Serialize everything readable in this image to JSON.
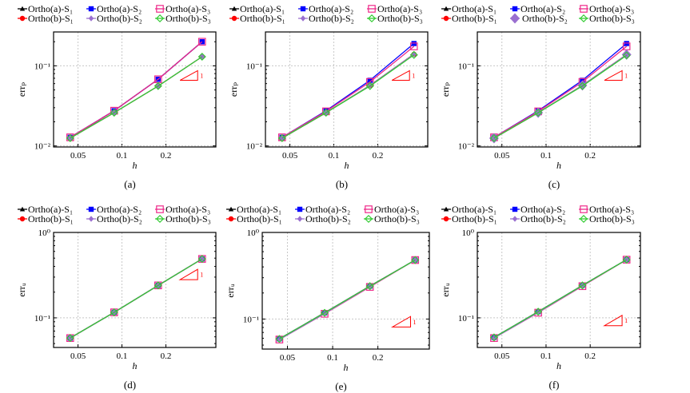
{
  "legend": {
    "entries": [
      {
        "label": "Ortho(a)-S₁",
        "color": "#000000",
        "marker": "triangle"
      },
      {
        "label": "Ortho(a)-S₂",
        "color": "#0000ff",
        "marker": "square"
      },
      {
        "label": "Ortho(a)-S₃",
        "color": "#ee2a8a",
        "marker": "open-square"
      },
      {
        "label": "Ortho(b)-S₁",
        "color": "#ff0000",
        "marker": "circle"
      },
      {
        "label": "Ortho(b)-S₂",
        "color": "#9a6fd0",
        "marker": "diamond"
      },
      {
        "label": "Ortho(b)-S₃",
        "color": "#33cc33",
        "marker": "open-diamond"
      }
    ]
  },
  "chart_data": [
    {
      "type": "line",
      "panel": "(a)",
      "xlabel": "h",
      "ylabel": "errₚ",
      "xscale": "log",
      "yscale": "log",
      "xlim": [
        0.034,
        0.44
      ],
      "ylim": [
        0.0097,
        0.265
      ],
      "xticks": [
        0.05,
        0.1,
        0.2
      ],
      "xtick_labels": [
        "0.05",
        "0.1",
        "0.2"
      ],
      "yticks": [
        0.01,
        0.1
      ],
      "ytick_labels": [
        "10⁻²",
        "10⁻¹"
      ],
      "grid": true,
      "slope_label": "1",
      "slope_triangle": {
        "x": [
          0.25,
          0.33
        ],
        "y": [
          0.066,
          0.087
        ]
      },
      "x": [
        0.0442,
        0.0884,
        0.177,
        0.354
      ],
      "series": [
        {
          "name": "Ortho(a)-S₁",
          "values": [
            0.0128,
            0.0275,
            0.068,
            0.2
          ]
        },
        {
          "name": "Ortho(a)-S₂",
          "values": [
            0.0128,
            0.0275,
            0.068,
            0.2
          ]
        },
        {
          "name": "Ortho(a)-S₃",
          "values": [
            0.0128,
            0.0275,
            0.068,
            0.2
          ]
        },
        {
          "name": "Ortho(b)-S₁",
          "values": [
            0.0125,
            0.026,
            0.056,
            0.13
          ]
        },
        {
          "name": "Ortho(b)-S₂",
          "values": [
            0.0125,
            0.026,
            0.056,
            0.13
          ]
        },
        {
          "name": "Ortho(b)-S₃",
          "values": [
            0.0125,
            0.026,
            0.056,
            0.13
          ]
        }
      ]
    },
    {
      "type": "line",
      "panel": "(b)",
      "xlabel": "h",
      "ylabel": "errₚ",
      "xscale": "log",
      "yscale": "log",
      "xlim": [
        0.034,
        0.44
      ],
      "ylim": [
        0.0097,
        0.265
      ],
      "xticks": [
        0.05,
        0.1,
        0.2
      ],
      "xtick_labels": [
        "0.05",
        "0.1",
        "0.2"
      ],
      "yticks": [
        0.01,
        0.1
      ],
      "ytick_labels": [
        "10⁻²",
        "10⁻¹"
      ],
      "grid": true,
      "slope_label": "1",
      "slope_triangle": {
        "x": [
          0.25,
          0.33
        ],
        "y": [
          0.066,
          0.087
        ]
      },
      "x": [
        0.0442,
        0.0884,
        0.177,
        0.354
      ],
      "series": [
        {
          "name": "Ortho(a)-S₁",
          "values": [
            0.0125,
            0.026,
            0.057,
            0.14
          ]
        },
        {
          "name": "Ortho(a)-S₂",
          "values": [
            0.0128,
            0.0275,
            0.066,
            0.19
          ]
        },
        {
          "name": "Ortho(a)-S₃",
          "values": [
            0.0128,
            0.027,
            0.063,
            0.175
          ]
        },
        {
          "name": "Ortho(b)-S₁",
          "values": [
            0.0125,
            0.026,
            0.057,
            0.14
          ]
        },
        {
          "name": "Ortho(b)-S₂",
          "values": [
            0.0125,
            0.026,
            0.057,
            0.14
          ]
        },
        {
          "name": "Ortho(b)-S₃",
          "values": [
            0.0125,
            0.026,
            0.056,
            0.137
          ]
        }
      ]
    },
    {
      "type": "line",
      "panel": "(c)",
      "xlabel": "h",
      "ylabel": "errₚ",
      "xscale": "log",
      "yscale": "log",
      "xlim": [
        0.034,
        0.44
      ],
      "ylim": [
        0.0097,
        0.265
      ],
      "xticks": [
        0.05,
        0.1,
        0.2
      ],
      "xtick_labels": [
        "0.05",
        "0.1",
        "0.2"
      ],
      "yticks": [
        0.01,
        0.1
      ],
      "ytick_labels": [
        "10⁻²",
        "10⁻¹"
      ],
      "grid": true,
      "slope_label": "1",
      "slope_triangle": {
        "x": [
          0.25,
          0.33
        ],
        "y": [
          0.066,
          0.087
        ]
      },
      "x": [
        0.0442,
        0.0884,
        0.177,
        0.354
      ],
      "series": [
        {
          "name": "Ortho(a)-S₁",
          "values": [
            0.0125,
            0.026,
            0.057,
            0.138
          ]
        },
        {
          "name": "Ortho(a)-S₂",
          "values": [
            0.0128,
            0.0275,
            0.066,
            0.19
          ]
        },
        {
          "name": "Ortho(a)-S₃",
          "values": [
            0.0128,
            0.027,
            0.063,
            0.175
          ]
        },
        {
          "name": "Ortho(b)-S₁",
          "values": [
            0.0125,
            0.026,
            0.057,
            0.138
          ]
        },
        {
          "name": "Ortho(b)-S₂",
          "values": [
            0.0125,
            0.026,
            0.057,
            0.138
          ]
        },
        {
          "name": "Ortho(b)-S₃",
          "values": [
            0.0125,
            0.026,
            0.056,
            0.135
          ]
        }
      ]
    },
    {
      "type": "line",
      "panel": "(d)",
      "xlabel": "h",
      "ylabel": "errᵤ",
      "xscale": "log",
      "yscale": "log",
      "xlim": [
        0.034,
        0.44
      ],
      "ylim": [
        0.045,
        1
      ],
      "xticks": [
        0.05,
        0.1,
        0.2
      ],
      "xtick_labels": [
        "0.05",
        "0.1",
        "0.2"
      ],
      "yticks": [
        0.1,
        1
      ],
      "ytick_labels": [
        "10⁻¹",
        "10⁰"
      ],
      "grid": true,
      "slope_label": "1",
      "slope_triangle": {
        "x": [
          0.25,
          0.33
        ],
        "y": [
          0.28,
          0.37
        ]
      },
      "x": [
        0.0442,
        0.0884,
        0.177,
        0.354
      ],
      "series": [
        {
          "name": "Ortho(a)-S₁",
          "values": [
            0.058,
            0.116,
            0.24,
            0.49
          ]
        },
        {
          "name": "Ortho(a)-S₂",
          "values": [
            0.058,
            0.116,
            0.24,
            0.49
          ]
        },
        {
          "name": "Ortho(a)-S₃",
          "values": [
            0.058,
            0.116,
            0.24,
            0.49
          ]
        },
        {
          "name": "Ortho(b)-S₁",
          "values": [
            0.058,
            0.116,
            0.24,
            0.49
          ]
        },
        {
          "name": "Ortho(b)-S₂",
          "values": [
            0.058,
            0.116,
            0.24,
            0.49
          ]
        },
        {
          "name": "Ortho(b)-S₃",
          "values": [
            0.058,
            0.116,
            0.24,
            0.49
          ]
        }
      ]
    },
    {
      "type": "line",
      "panel": "(e)",
      "xlabel": "h",
      "ylabel": "errᵤ",
      "xscale": "log",
      "yscale": "log",
      "xlim": [
        0.034,
        0.44
      ],
      "ylim": [
        0.045,
        1
      ],
      "xticks": [
        0.05,
        0.1,
        0.2
      ],
      "xtick_labels": [
        "0.05",
        "0.1",
        "0.2"
      ],
      "yticks": [
        0.1,
        1
      ],
      "ytick_labels": [
        "10⁻¹",
        "10⁰"
      ],
      "grid": true,
      "slope_label": "1",
      "slope_triangle": {
        "x": [
          0.25,
          0.33
        ],
        "y": [
          0.081,
          0.107
        ]
      },
      "x": [
        0.0442,
        0.0884,
        0.177,
        0.354
      ],
      "series": [
        {
          "name": "Ortho(a)-S₁",
          "values": [
            0.059,
            0.118,
            0.24,
            0.48
          ]
        },
        {
          "name": "Ortho(a)-S₂",
          "values": [
            0.059,
            0.118,
            0.24,
            0.48
          ]
        },
        {
          "name": "Ortho(a)-S₃",
          "values": [
            0.058,
            0.115,
            0.235,
            0.48
          ]
        },
        {
          "name": "Ortho(b)-S₁",
          "values": [
            0.059,
            0.118,
            0.24,
            0.48
          ]
        },
        {
          "name": "Ortho(b)-S₂",
          "values": [
            0.058,
            0.116,
            0.238,
            0.48
          ]
        },
        {
          "name": "Ortho(b)-S₃",
          "values": [
            0.059,
            0.118,
            0.24,
            0.48
          ]
        }
      ]
    },
    {
      "type": "line",
      "panel": "(f)",
      "xlabel": "h",
      "ylabel": "errᵤ",
      "xscale": "log",
      "yscale": "log",
      "xlim": [
        0.034,
        0.44
      ],
      "ylim": [
        0.045,
        1
      ],
      "xticks": [
        0.05,
        0.1,
        0.2
      ],
      "xtick_labels": [
        "0.05",
        "0.1",
        "0.2"
      ],
      "yticks": [
        0.1,
        1
      ],
      "ytick_labels": [
        "10⁻¹",
        "10⁰"
      ],
      "grid": true,
      "slope_label": "1",
      "slope_triangle": {
        "x": [
          0.25,
          0.33
        ],
        "y": [
          0.081,
          0.107
        ]
      },
      "x": [
        0.0442,
        0.0884,
        0.177,
        0.354
      ],
      "series": [
        {
          "name": "Ortho(a)-S₁",
          "values": [
            0.059,
            0.118,
            0.24,
            0.48
          ]
        },
        {
          "name": "Ortho(a)-S₂",
          "values": [
            0.059,
            0.118,
            0.24,
            0.48
          ]
        },
        {
          "name": "Ortho(a)-S₃",
          "values": [
            0.058,
            0.115,
            0.235,
            0.48
          ]
        },
        {
          "name": "Ortho(b)-S₁",
          "values": [
            0.059,
            0.118,
            0.24,
            0.48
          ]
        },
        {
          "name": "Ortho(b)-S₂",
          "values": [
            0.058,
            0.116,
            0.238,
            0.48
          ]
        },
        {
          "name": "Ortho(b)-S₃",
          "values": [
            0.059,
            0.118,
            0.24,
            0.48
          ]
        }
      ]
    }
  ]
}
